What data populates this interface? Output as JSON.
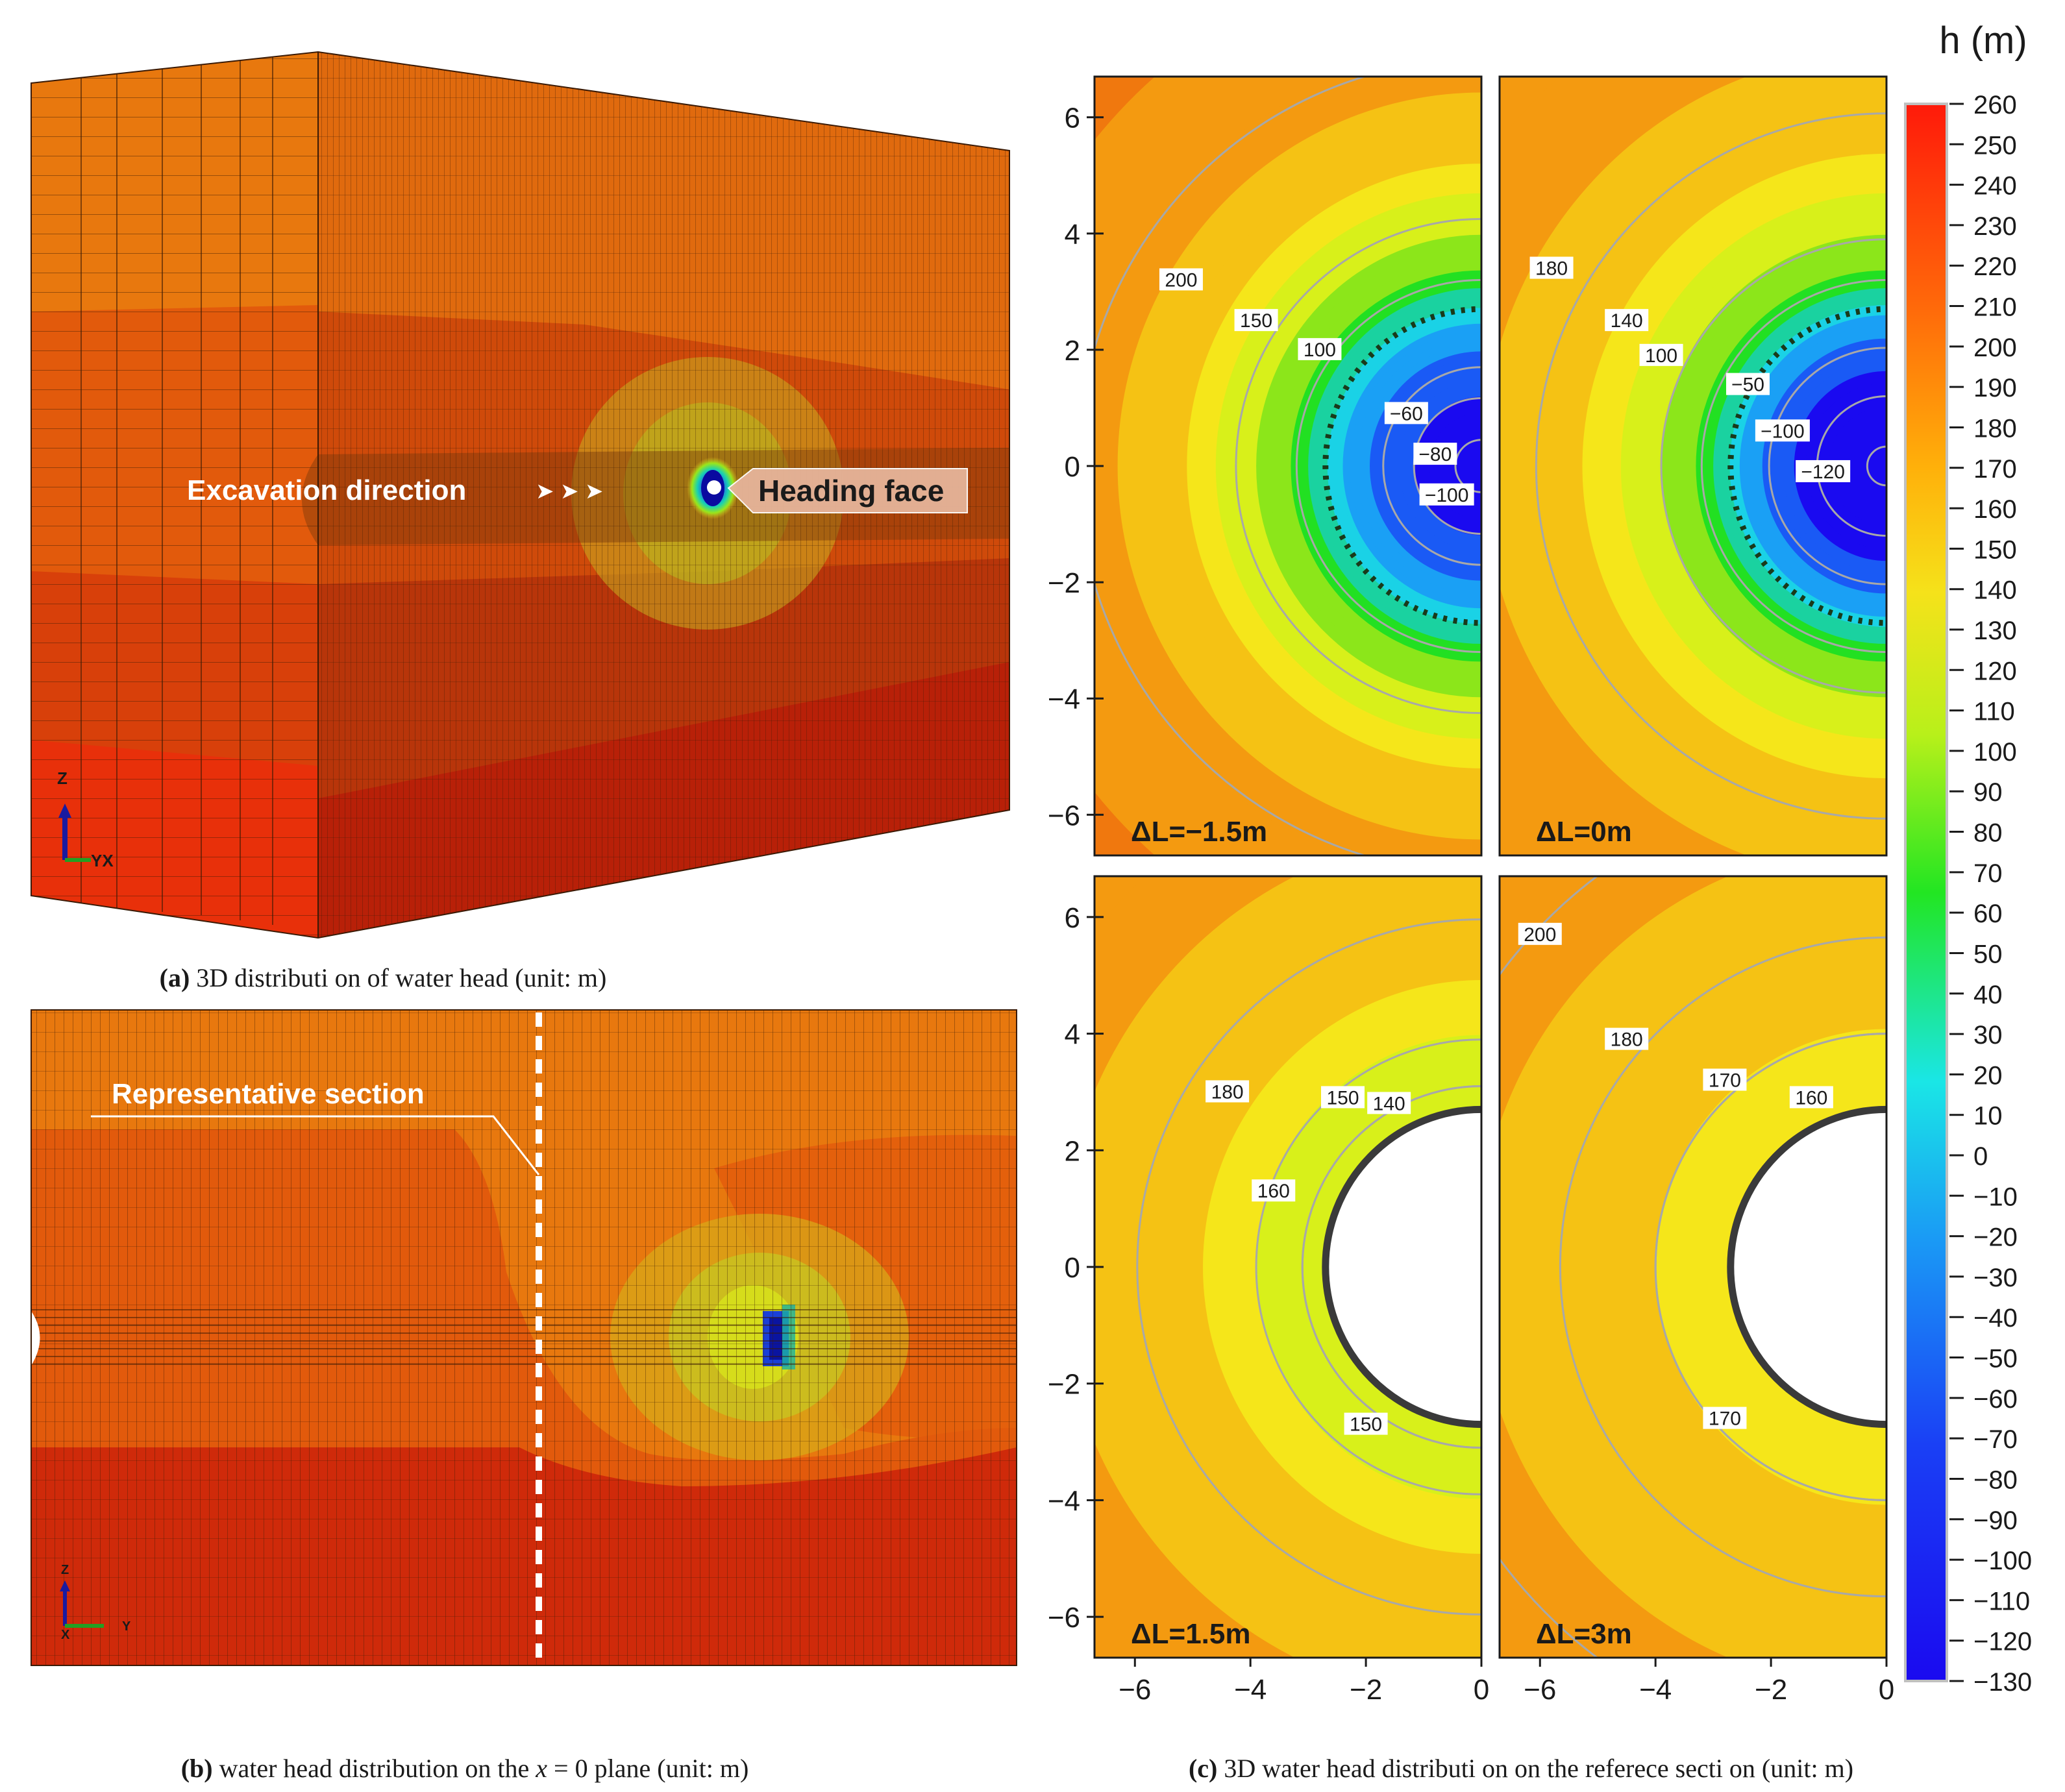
{
  "figure": {
    "captions": {
      "a": {
        "label": "(a)",
        "text": " 3D distributi on of water head (unit: m)"
      },
      "b": {
        "label": "(b)",
        "text": " water head distribution on the ",
        "var": "x",
        "text2": " = 0 plane (unit: m)"
      },
      "c": {
        "label": "(c)",
        "text": " 3D water head distributi on on the referece secti on (unit: m)"
      }
    },
    "panel_a": {
      "excavation_label": "Excavation direction",
      "arrows": "➤ ➤ ➤",
      "heading_label": "Heading face",
      "axis_z": "Z",
      "axis_yx": "YX"
    },
    "panel_b": {
      "section_label": "Representative section",
      "axis_z": "Z",
      "axis_x": "X",
      "axis_y": "Y"
    }
  },
  "colors": {
    "orange": "#f0860f",
    "orange_dark": "#e66a0c",
    "red": "#d8330a",
    "red_dark": "#c0200a",
    "yellow": "#f2ea1a",
    "green": "#2bd21c",
    "cyan": "#14d2e6",
    "blue": "#1a3cf0",
    "contour": "#a8a8a8"
  },
  "chart_data": [
    {
      "type": "heatmap",
      "title": "ΔL=−1.5m",
      "x_ticks": [
        "−6",
        "−4",
        "−2",
        "0"
      ],
      "y_ticks": [
        "6",
        "4",
        "2",
        "0",
        "−2",
        "−4",
        "−6"
      ],
      "xlim": [
        -6.7,
        0
      ],
      "ylim": [
        -6.7,
        6.7
      ],
      "contour_labels": [
        "200",
        "150",
        "100",
        "−60",
        "−80",
        "−100"
      ],
      "tunnel_boundary": "dotted",
      "tunnel_radius": 2.7
    },
    {
      "type": "heatmap",
      "title": "ΔL=0m",
      "x_ticks": [
        "−6",
        "−4",
        "−2",
        "0"
      ],
      "y_ticks": [],
      "xlim": [
        -6.7,
        0
      ],
      "ylim": [
        -6.7,
        6.7
      ],
      "contour_labels": [
        "180",
        "140",
        "100",
        "−50",
        "−100",
        "−120"
      ],
      "tunnel_boundary": "dotted",
      "tunnel_radius": 2.7
    },
    {
      "type": "heatmap",
      "title": "ΔL=1.5m",
      "x_ticks": [
        "−6",
        "−4",
        "−2",
        "0"
      ],
      "y_ticks": [
        "6",
        "4",
        "2",
        "0",
        "−2",
        "−4",
        "−6"
      ],
      "xlim": [
        -6.7,
        0
      ],
      "ylim": [
        -6.7,
        6.7
      ],
      "contour_labels": [
        "180",
        "150",
        "140",
        "160",
        "150"
      ],
      "tunnel_boundary": "solid",
      "tunnel_radius": 2.7
    },
    {
      "type": "heatmap",
      "title": "ΔL=3m",
      "x_ticks": [
        "−6",
        "−4",
        "−2",
        "0"
      ],
      "y_ticks": [],
      "xlim": [
        -6.7,
        0
      ],
      "ylim": [
        -6.7,
        6.7
      ],
      "contour_labels": [
        "200",
        "180",
        "170",
        "160",
        "170"
      ],
      "tunnel_boundary": "solid",
      "tunnel_radius": 2.7
    }
  ],
  "colorbar": {
    "title": "h (m)",
    "min": -130,
    "max": 260,
    "ticks": [
      "260",
      "250",
      "240",
      "230",
      "220",
      "210",
      "200",
      "190",
      "180",
      "170",
      "160",
      "150",
      "140",
      "130",
      "120",
      "110",
      "100",
      "90",
      "80",
      "70",
      "60",
      "50",
      "40",
      "30",
      "20",
      "10",
      "0",
      "−10",
      "−20",
      "−30",
      "−40",
      "−50",
      "−60",
      "−70",
      "−80",
      "−90",
      "−100",
      "−110",
      "−120",
      "−130"
    ]
  }
}
